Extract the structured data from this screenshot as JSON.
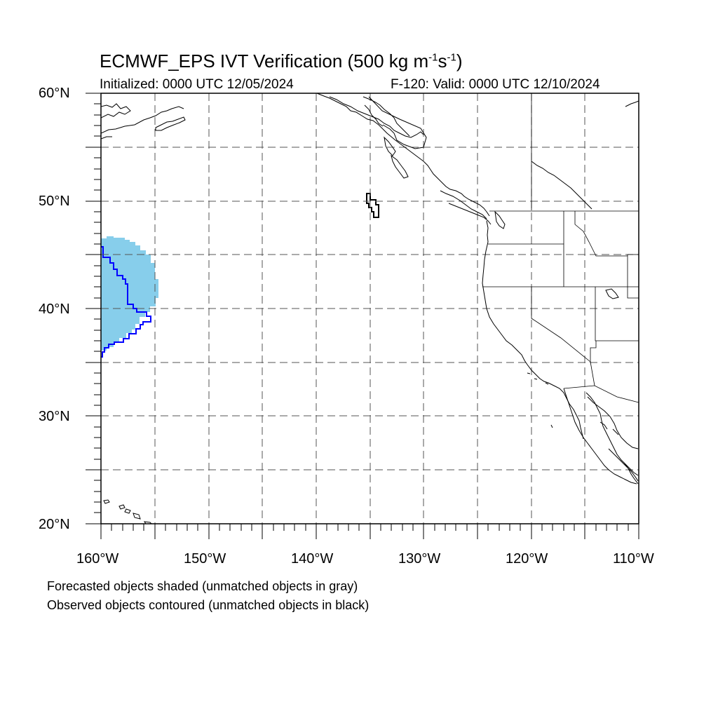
{
  "header": {
    "title_main": "ECMWF_EPS IVT Verification (500 kg m",
    "title_sup1": "-1",
    "title_mid": "s",
    "title_sup2": "-1",
    "title_end": ")",
    "initialized": "Initialized: 0000 UTC 12/05/2024",
    "valid": "F-120: Valid: 0000 UTC 12/10/2024"
  },
  "axes": {
    "lat_labels": [
      "60°N",
      "50°N",
      "40°N",
      "30°N",
      "20°N"
    ],
    "lon_labels": [
      "160°W",
      "150°W",
      "140°W",
      "130°W",
      "120°W",
      "110°W"
    ],
    "lat_range": [
      20,
      60
    ],
    "lon_range": [
      -160,
      -110
    ],
    "grid_spacing_deg": 5,
    "grid_style": "dashed"
  },
  "legend": {
    "line1": "Forecasted objects shaded (unmatched objects in gray)",
    "line2": "Observed objects contoured (unmatched objects in black)"
  },
  "colors": {
    "forecast_fill": "#87ceeb",
    "observed_contour": "#0000ff",
    "unmatched_contour": "#000000",
    "coastline": "#000000",
    "grid": "#555555"
  }
}
